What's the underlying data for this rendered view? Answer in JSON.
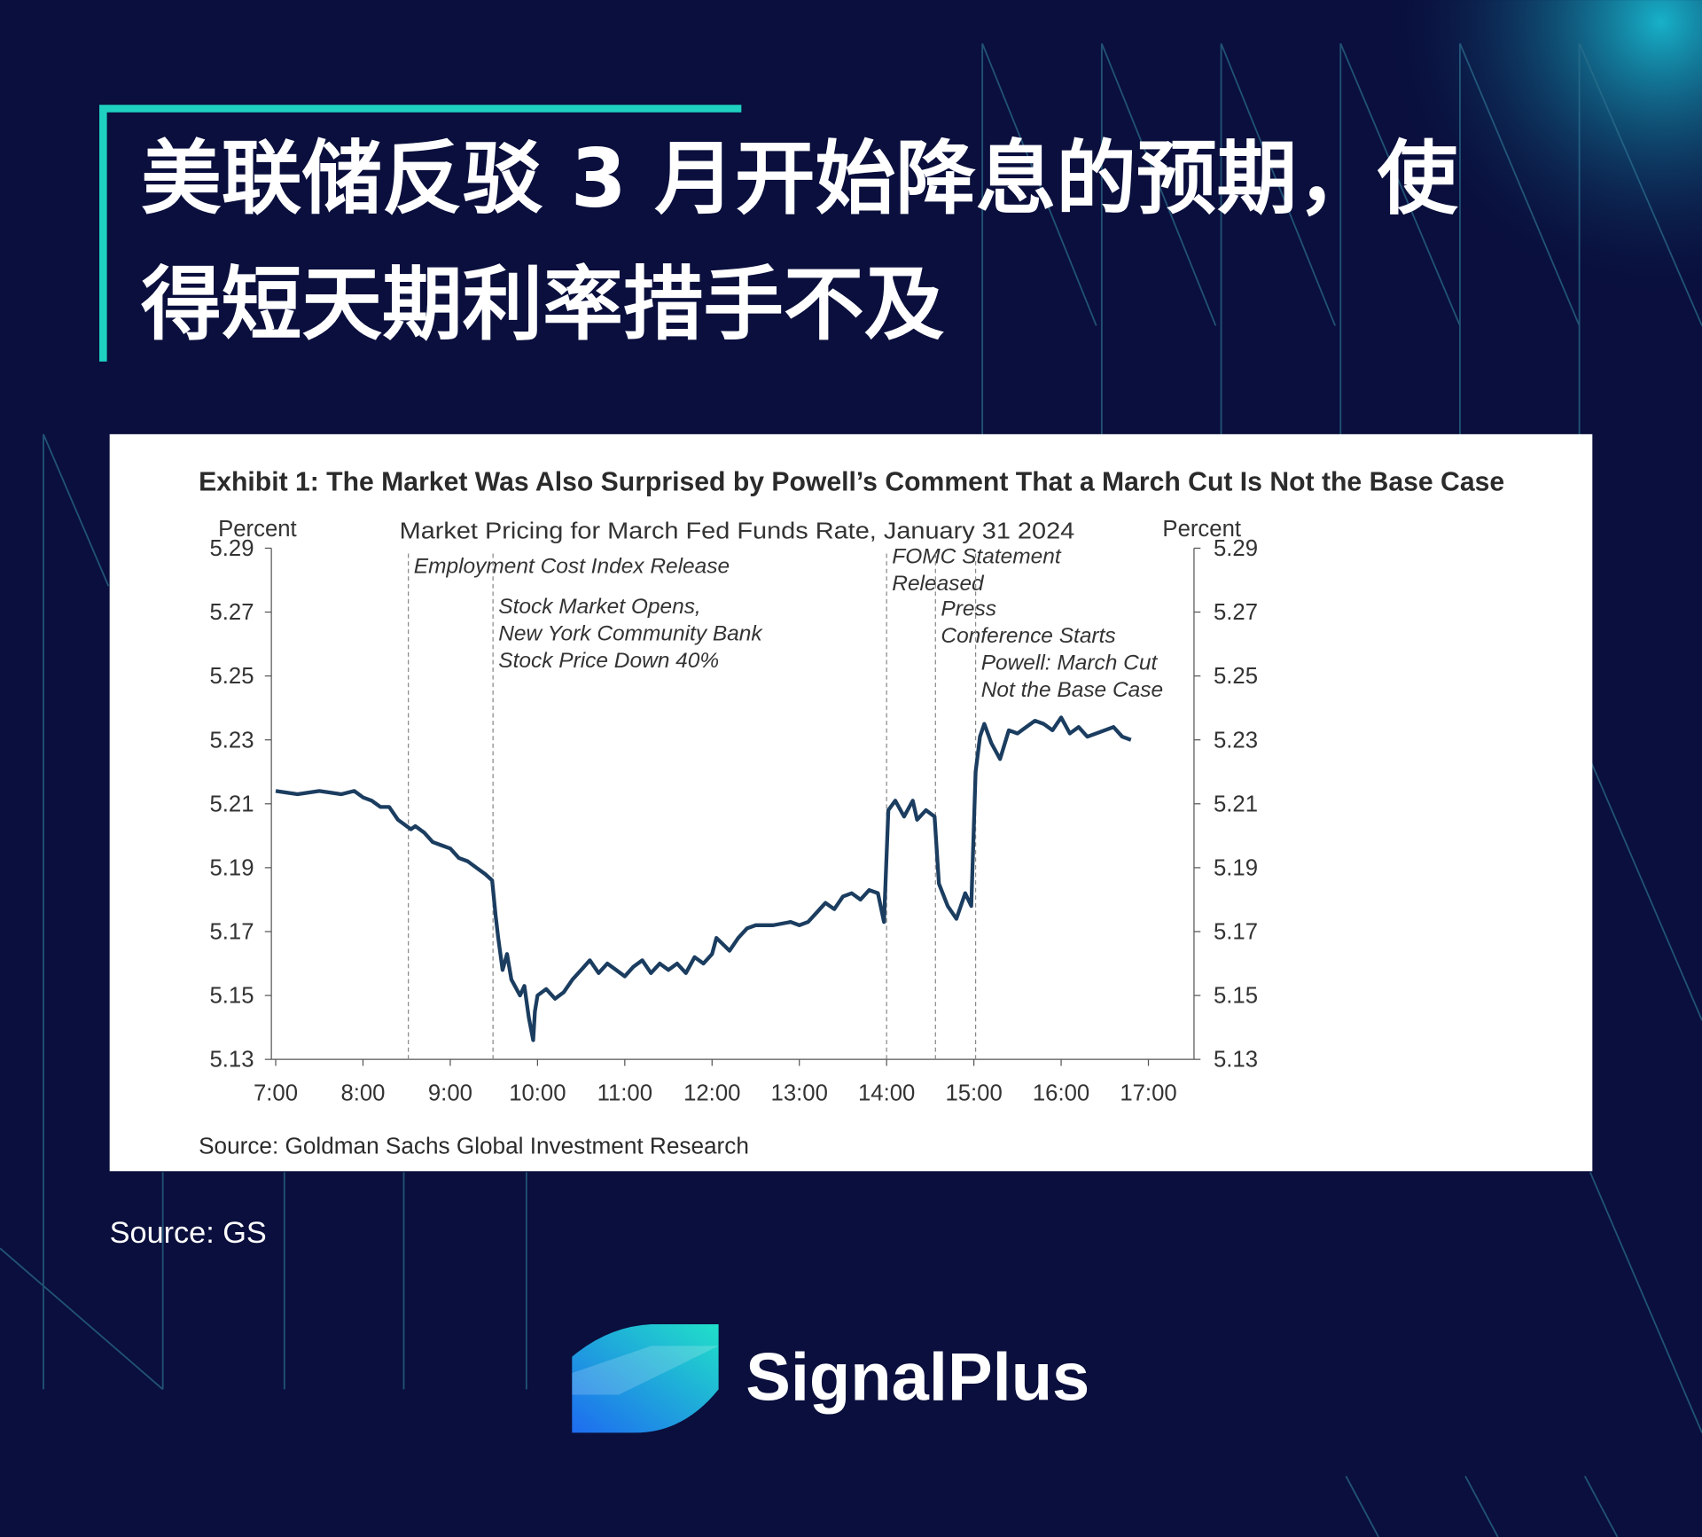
{
  "header": {
    "title": [
      "美联储反驳 3 月开始降息的预期，使",
      "得短天期利率措手不及"
    ]
  },
  "chart_data": {
    "type": "line",
    "title": "Exhibit 1: The Market Was Also Surprised by Powell’s Comment That a March Cut Is Not the Base Case",
    "subtitle": "Market Pricing for March Fed Funds Rate, January 31 2024",
    "ylabel": "Percent",
    "y2label": "Percent",
    "color": "#1b3d60",
    "x": [
      7,
      7.25,
      7.5,
      7.75,
      7.9,
      8,
      8.1,
      8.2,
      8.3,
      8.4,
      8.5,
      8.55,
      8.6,
      8.7,
      8.8,
      8.9,
      9,
      9.1,
      9.2,
      9.3,
      9.4,
      9.48,
      9.52,
      9.55,
      9.6,
      9.65,
      9.7,
      9.8,
      9.85,
      9.9,
      9.95,
      9.97,
      10,
      10.1,
      10.2,
      10.3,
      10.4,
      10.5,
      10.6,
      10.7,
      10.8,
      10.9,
      11,
      11.1,
      11.2,
      11.3,
      11.4,
      11.5,
      11.6,
      11.7,
      11.8,
      11.9,
      12,
      12.05,
      12.2,
      12.3,
      12.4,
      12.5,
      12.7,
      12.9,
      13,
      13.1,
      13.2,
      13.3,
      13.4,
      13.5,
      13.6,
      13.7,
      13.8,
      13.9,
      13.97,
      14.02,
      14.1,
      14.2,
      14.3,
      14.35,
      14.45,
      14.55,
      14.6,
      14.7,
      14.8,
      14.9,
      14.97,
      15.02,
      15.07,
      15.12,
      15.2,
      15.3,
      15.4,
      15.5,
      15.6,
      15.7,
      15.8,
      15.9,
      16,
      16.1,
      16.2,
      16.3,
      16.4,
      16.5,
      16.6,
      16.7,
      16.8
    ],
    "values": [
      5.214,
      5.213,
      5.214,
      5.213,
      5.214,
      5.212,
      5.211,
      5.209,
      5.209,
      5.205,
      5.203,
      5.202,
      5.203,
      5.201,
      5.198,
      5.197,
      5.196,
      5.193,
      5.192,
      5.19,
      5.188,
      5.186,
      5.175,
      5.168,
      5.158,
      5.163,
      5.155,
      5.15,
      5.153,
      5.143,
      5.136,
      5.145,
      5.15,
      5.152,
      5.149,
      5.151,
      5.155,
      5.158,
      5.161,
      5.157,
      5.16,
      5.158,
      5.156,
      5.159,
      5.161,
      5.157,
      5.16,
      5.158,
      5.16,
      5.157,
      5.162,
      5.16,
      5.163,
      5.168,
      5.164,
      5.168,
      5.171,
      5.172,
      5.172,
      5.173,
      5.172,
      5.173,
      5.176,
      5.179,
      5.177,
      5.181,
      5.182,
      5.18,
      5.183,
      5.182,
      5.173,
      5.208,
      5.211,
      5.206,
      5.211,
      5.205,
      5.208,
      5.206,
      5.185,
      5.178,
      5.174,
      5.182,
      5.178,
      5.22,
      5.231,
      5.235,
      5.229,
      5.224,
      5.233,
      5.232,
      5.234,
      5.236,
      5.235,
      5.233,
      5.237,
      5.232,
      5.234,
      5.231,
      5.232,
      5.233,
      5.234,
      5.231,
      5.23
    ],
    "xlim": [
      7,
      17
    ],
    "xticks": [
      {
        "value": 7,
        "label": "7:00"
      },
      {
        "value": 8,
        "label": "8:00"
      },
      {
        "value": 9,
        "label": "9:00"
      },
      {
        "value": 10,
        "label": "10:00"
      },
      {
        "value": 11,
        "label": "11:00"
      },
      {
        "value": 12,
        "label": "12:00"
      },
      {
        "value": 13,
        "label": "13:00"
      },
      {
        "value": 14,
        "label": "14:00"
      },
      {
        "value": 15,
        "label": "15:00"
      },
      {
        "value": 16,
        "label": "16:00"
      },
      {
        "value": 17,
        "label": "17:00"
      }
    ],
    "ylim": [
      5.13,
      5.29
    ],
    "yticks": [
      5.13,
      5.15,
      5.17,
      5.19,
      5.21,
      5.23,
      5.25,
      5.27,
      5.29
    ],
    "y2lim": [
      5.13,
      5.29
    ],
    "y2ticks": [
      5.13,
      5.15,
      5.17,
      5.19,
      5.21,
      5.23,
      5.25,
      5.27,
      5.29
    ],
    "events": [
      {
        "x": 8.52,
        "lines": [
          "Employment Cost Index Release"
        ]
      },
      {
        "x": 9.49,
        "lines": [
          "Stock Market Opens,",
          "New York Community Bank",
          "Stock Price Down 40%"
        ]
      },
      {
        "x": 14.0,
        "lines": [
          "FOMC Statement",
          "Released"
        ]
      },
      {
        "x": 14.56,
        "lines": [
          "Press",
          "Conference Starts"
        ]
      },
      {
        "x": 15.02,
        "lines": [
          "Powell: March Cut",
          "Not the Base Case"
        ]
      }
    ],
    "source": "Source: Goldman Sachs Global Investment Research"
  },
  "footer": {
    "source": "Source: GS",
    "brand": "SignalPlus"
  }
}
